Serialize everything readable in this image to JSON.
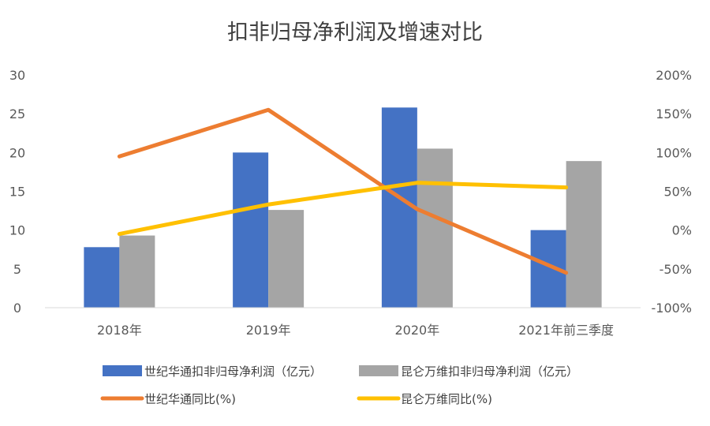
{
  "chart_data": {
    "type": "bar+line",
    "title": "扣非归母净利润及增速对比",
    "categories": [
      "2018年",
      "2019年",
      "2020年",
      "2021年前三季度"
    ],
    "bar_series": [
      {
        "name": "世纪华通扣非归母净利润（亿元）",
        "values": [
          7.8,
          20.0,
          25.8,
          10.0
        ],
        "color": "#4472c4"
      },
      {
        "name": "昆仑万维扣非归母净利润（亿元）",
        "values": [
          9.3,
          12.6,
          20.5,
          18.9
        ],
        "color": "#a5a5a5"
      }
    ],
    "line_series": [
      {
        "name": "世纪华通同比(%)",
        "values": [
          95,
          155,
          27,
          -55
        ],
        "color": "#ed7d31",
        "axis": "right"
      },
      {
        "name": "昆仑万维同比(%)",
        "values": [
          -5,
          33,
          61,
          55
        ],
        "color": "#ffc000",
        "axis": "right"
      }
    ],
    "left_axis": {
      "min": 0,
      "max": 30,
      "ticks": [
        "0",
        "5",
        "10",
        "15",
        "20",
        "25",
        "30"
      ]
    },
    "right_axis": {
      "min": -100,
      "max": 200,
      "ticks": [
        "-100%",
        "-50%",
        "0%",
        "50%",
        "100%",
        "150%",
        "200%"
      ]
    },
    "grid": false,
    "legend_position": "bottom"
  }
}
